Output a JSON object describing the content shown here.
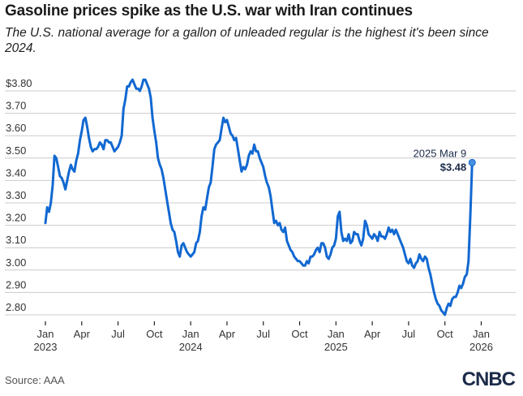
{
  "header": {
    "title": "Gasoline prices spike as the U.S. war with Iran continues",
    "subtitle": "The U.S. national average for a gallon of unleaded regular is the highest it's been since 2024."
  },
  "footer": {
    "source": "Source: AAA",
    "logo": "CNBC"
  },
  "chart_data": {
    "type": "line",
    "title": "Gasoline prices spike as the U.S. war with Iran continues",
    "subtitle": "The U.S. national average for a gallon of unleaded regular is the highest it's been since 2024.",
    "xlabel": "",
    "ylabel": "",
    "ylim": [
      2.78,
      3.87
    ],
    "y_ticks": [
      {
        "value": 3.8,
        "label": "$3.80"
      },
      {
        "value": 3.7,
        "label": "3.70"
      },
      {
        "value": 3.6,
        "label": "3.60"
      },
      {
        "value": 3.5,
        "label": "3.50"
      },
      {
        "value": 3.4,
        "label": "3.40"
      },
      {
        "value": 3.3,
        "label": "3.30"
      },
      {
        "value": 3.2,
        "label": "3.20"
      },
      {
        "value": 3.1,
        "label": "3.10"
      },
      {
        "value": 3.0,
        "label": "3.00"
      },
      {
        "value": 2.9,
        "label": "2.90"
      },
      {
        "value": 2.8,
        "label": "2.80"
      }
    ],
    "x_ticks": [
      {
        "month": 0,
        "label": "Jan",
        "year": "2023"
      },
      {
        "month": 3,
        "label": "Apr",
        "year": ""
      },
      {
        "month": 6,
        "label": "Jul",
        "year": ""
      },
      {
        "month": 9,
        "label": "Oct",
        "year": ""
      },
      {
        "month": 12,
        "label": "Jan",
        "year": "2024"
      },
      {
        "month": 15,
        "label": "Apr",
        "year": ""
      },
      {
        "month": 18,
        "label": "Jul",
        "year": ""
      },
      {
        "month": 21,
        "label": "Oct",
        "year": ""
      },
      {
        "month": 24,
        "label": "Jan",
        "year": "2025"
      },
      {
        "month": 27,
        "label": "Apr",
        "year": ""
      },
      {
        "month": 30,
        "label": "Jul",
        "year": ""
      },
      {
        "month": 33,
        "label": "Oct",
        "year": ""
      },
      {
        "month": 36,
        "label": "Jan",
        "year": "2026"
      }
    ],
    "x_unit": "months since Jan 2023",
    "grid": true,
    "legend": "none",
    "series": [
      {
        "name": "U.S. national average, unleaded regular ($/gal)",
        "color": "#1168d1",
        "points": [
          [
            0.0,
            3.21
          ],
          [
            0.15,
            3.28
          ],
          [
            0.3,
            3.26
          ],
          [
            0.45,
            3.3
          ],
          [
            0.6,
            3.38
          ],
          [
            0.75,
            3.51
          ],
          [
            0.9,
            3.5
          ],
          [
            1.05,
            3.46
          ],
          [
            1.2,
            3.42
          ],
          [
            1.35,
            3.41
          ],
          [
            1.5,
            3.39
          ],
          [
            1.65,
            3.36
          ],
          [
            1.8,
            3.4
          ],
          [
            1.95,
            3.44
          ],
          [
            2.1,
            3.47
          ],
          [
            2.25,
            3.45
          ],
          [
            2.4,
            3.44
          ],
          [
            2.55,
            3.49
          ],
          [
            2.7,
            3.52
          ],
          [
            2.85,
            3.58
          ],
          [
            3.0,
            3.62
          ],
          [
            3.15,
            3.67
          ],
          [
            3.3,
            3.68
          ],
          [
            3.45,
            3.64
          ],
          [
            3.6,
            3.59
          ],
          [
            3.75,
            3.55
          ],
          [
            3.9,
            3.53
          ],
          [
            4.05,
            3.54
          ],
          [
            4.2,
            3.54
          ],
          [
            4.35,
            3.55
          ],
          [
            4.5,
            3.57
          ],
          [
            4.65,
            3.56
          ],
          [
            4.8,
            3.54
          ],
          [
            4.95,
            3.58
          ],
          [
            5.1,
            3.58
          ],
          [
            5.25,
            3.57
          ],
          [
            5.4,
            3.57
          ],
          [
            5.55,
            3.55
          ],
          [
            5.7,
            3.53
          ],
          [
            5.85,
            3.54
          ],
          [
            6.0,
            3.55
          ],
          [
            6.15,
            3.57
          ],
          [
            6.3,
            3.6
          ],
          [
            6.45,
            3.72
          ],
          [
            6.6,
            3.76
          ],
          [
            6.75,
            3.82
          ],
          [
            6.9,
            3.82
          ],
          [
            7.05,
            3.84
          ],
          [
            7.2,
            3.85
          ],
          [
            7.35,
            3.83
          ],
          [
            7.5,
            3.81
          ],
          [
            7.65,
            3.81
          ],
          [
            7.8,
            3.8
          ],
          [
            7.95,
            3.82
          ],
          [
            8.1,
            3.85
          ],
          [
            8.25,
            3.85
          ],
          [
            8.4,
            3.83
          ],
          [
            8.55,
            3.81
          ],
          [
            8.7,
            3.77
          ],
          [
            8.85,
            3.68
          ],
          [
            9.0,
            3.62
          ],
          [
            9.15,
            3.57
          ],
          [
            9.3,
            3.5
          ],
          [
            9.45,
            3.47
          ],
          [
            9.6,
            3.45
          ],
          [
            9.75,
            3.41
          ],
          [
            9.9,
            3.36
          ],
          [
            10.05,
            3.31
          ],
          [
            10.2,
            3.26
          ],
          [
            10.35,
            3.21
          ],
          [
            10.5,
            3.18
          ],
          [
            10.65,
            3.17
          ],
          [
            10.8,
            3.13
          ],
          [
            10.95,
            3.08
          ],
          [
            11.1,
            3.06
          ],
          [
            11.25,
            3.11
          ],
          [
            11.4,
            3.12
          ],
          [
            11.55,
            3.1
          ],
          [
            11.7,
            3.08
          ],
          [
            11.85,
            3.07
          ],
          [
            12.0,
            3.06
          ],
          [
            12.15,
            3.07
          ],
          [
            12.3,
            3.08
          ],
          [
            12.45,
            3.12
          ],
          [
            12.6,
            3.13
          ],
          [
            12.75,
            3.17
          ],
          [
            12.9,
            3.24
          ],
          [
            13.05,
            3.28
          ],
          [
            13.2,
            3.27
          ],
          [
            13.35,
            3.32
          ],
          [
            13.5,
            3.37
          ],
          [
            13.65,
            3.39
          ],
          [
            13.8,
            3.46
          ],
          [
            13.95,
            3.54
          ],
          [
            14.1,
            3.56
          ],
          [
            14.25,
            3.57
          ],
          [
            14.4,
            3.58
          ],
          [
            14.55,
            3.63
          ],
          [
            14.7,
            3.68
          ],
          [
            14.85,
            3.66
          ],
          [
            15.0,
            3.67
          ],
          [
            15.15,
            3.64
          ],
          [
            15.3,
            3.61
          ],
          [
            15.45,
            3.6
          ],
          [
            15.6,
            3.58
          ],
          [
            15.75,
            3.59
          ],
          [
            15.9,
            3.54
          ],
          [
            16.05,
            3.49
          ],
          [
            16.2,
            3.44
          ],
          [
            16.35,
            3.46
          ],
          [
            16.5,
            3.45
          ],
          [
            16.65,
            3.47
          ],
          [
            16.8,
            3.51
          ],
          [
            16.95,
            3.53
          ],
          [
            17.1,
            3.52
          ],
          [
            17.25,
            3.56
          ],
          [
            17.4,
            3.53
          ],
          [
            17.55,
            3.53
          ],
          [
            17.7,
            3.5
          ],
          [
            17.85,
            3.48
          ],
          [
            18.0,
            3.46
          ],
          [
            18.15,
            3.42
          ],
          [
            18.3,
            3.39
          ],
          [
            18.45,
            3.37
          ],
          [
            18.6,
            3.33
          ],
          [
            18.75,
            3.27
          ],
          [
            18.9,
            3.21
          ],
          [
            19.05,
            3.22
          ],
          [
            19.2,
            3.2
          ],
          [
            19.35,
            3.21
          ],
          [
            19.5,
            3.18
          ],
          [
            19.65,
            3.17
          ],
          [
            19.8,
            3.19
          ],
          [
            19.95,
            3.13
          ],
          [
            20.1,
            3.11
          ],
          [
            20.25,
            3.09
          ],
          [
            20.4,
            3.08
          ],
          [
            20.55,
            3.06
          ],
          [
            20.7,
            3.05
          ],
          [
            20.85,
            3.04
          ],
          [
            21.0,
            3.04
          ],
          [
            21.15,
            3.03
          ],
          [
            21.3,
            3.02
          ],
          [
            21.45,
            3.02
          ],
          [
            21.6,
            3.04
          ],
          [
            21.75,
            3.03
          ],
          [
            21.9,
            3.06
          ],
          [
            22.05,
            3.06
          ],
          [
            22.2,
            3.07
          ],
          [
            22.35,
            3.09
          ],
          [
            22.5,
            3.1
          ],
          [
            22.65,
            3.08
          ],
          [
            22.8,
            3.12
          ],
          [
            22.95,
            3.12
          ],
          [
            23.1,
            3.1
          ],
          [
            23.25,
            3.06
          ],
          [
            23.4,
            3.05
          ],
          [
            23.55,
            3.07
          ],
          [
            23.7,
            3.1
          ],
          [
            23.85,
            3.11
          ],
          [
            24.0,
            3.14
          ],
          [
            24.15,
            3.24
          ],
          [
            24.3,
            3.26
          ],
          [
            24.45,
            3.17
          ],
          [
            24.6,
            3.13
          ],
          [
            24.75,
            3.14
          ],
          [
            24.9,
            3.13
          ],
          [
            25.05,
            3.16
          ],
          [
            25.2,
            3.12
          ],
          [
            25.35,
            3.13
          ],
          [
            25.5,
            3.17
          ],
          [
            25.65,
            3.16
          ],
          [
            25.8,
            3.16
          ],
          [
            25.95,
            3.13
          ],
          [
            26.1,
            3.11
          ],
          [
            26.25,
            3.14
          ],
          [
            26.4,
            3.22
          ],
          [
            26.55,
            3.2
          ],
          [
            26.7,
            3.16
          ],
          [
            26.85,
            3.15
          ],
          [
            27.0,
            3.14
          ],
          [
            27.15,
            3.16
          ],
          [
            27.3,
            3.15
          ],
          [
            27.45,
            3.13
          ],
          [
            27.6,
            3.17
          ],
          [
            27.75,
            3.15
          ],
          [
            27.9,
            3.15
          ],
          [
            28.05,
            3.14
          ],
          [
            28.2,
            3.16
          ],
          [
            28.35,
            3.19
          ],
          [
            28.5,
            3.17
          ],
          [
            28.65,
            3.18
          ],
          [
            28.8,
            3.16
          ],
          [
            28.95,
            3.18
          ],
          [
            29.1,
            3.16
          ],
          [
            29.25,
            3.14
          ],
          [
            29.4,
            3.12
          ],
          [
            29.55,
            3.1
          ],
          [
            29.7,
            3.07
          ],
          [
            29.85,
            3.04
          ],
          [
            30.0,
            3.03
          ],
          [
            30.15,
            3.05
          ],
          [
            30.3,
            3.02
          ],
          [
            30.45,
            3.01
          ],
          [
            30.6,
            3.03
          ],
          [
            30.75,
            3.04
          ],
          [
            30.9,
            3.07
          ],
          [
            31.05,
            3.05
          ],
          [
            31.2,
            3.04
          ],
          [
            31.35,
            3.06
          ],
          [
            31.5,
            3.05
          ],
          [
            31.65,
            3.01
          ],
          [
            31.8,
            2.98
          ],
          [
            31.95,
            2.94
          ],
          [
            32.1,
            2.9
          ],
          [
            32.25,
            2.87
          ],
          [
            32.4,
            2.85
          ],
          [
            32.55,
            2.84
          ],
          [
            32.7,
            2.82
          ],
          [
            32.85,
            2.81
          ],
          [
            33.0,
            2.8
          ],
          [
            33.15,
            2.83
          ],
          [
            33.3,
            2.85
          ],
          [
            33.45,
            2.84
          ],
          [
            33.6,
            2.87
          ],
          [
            33.75,
            2.88
          ],
          [
            33.9,
            2.88
          ],
          [
            34.05,
            2.9
          ],
          [
            34.2,
            2.93
          ],
          [
            34.35,
            2.92
          ],
          [
            34.5,
            2.94
          ],
          [
            34.65,
            2.97
          ],
          [
            34.8,
            2.98
          ],
          [
            34.95,
            3.04
          ],
          [
            35.1,
            3.24
          ],
          [
            35.25,
            3.48
          ]
        ]
      }
    ],
    "annotations": [
      {
        "label": "2025 Mar 9",
        "value_label": "$3.48",
        "x": 35.25,
        "y": 3.48
      }
    ]
  }
}
